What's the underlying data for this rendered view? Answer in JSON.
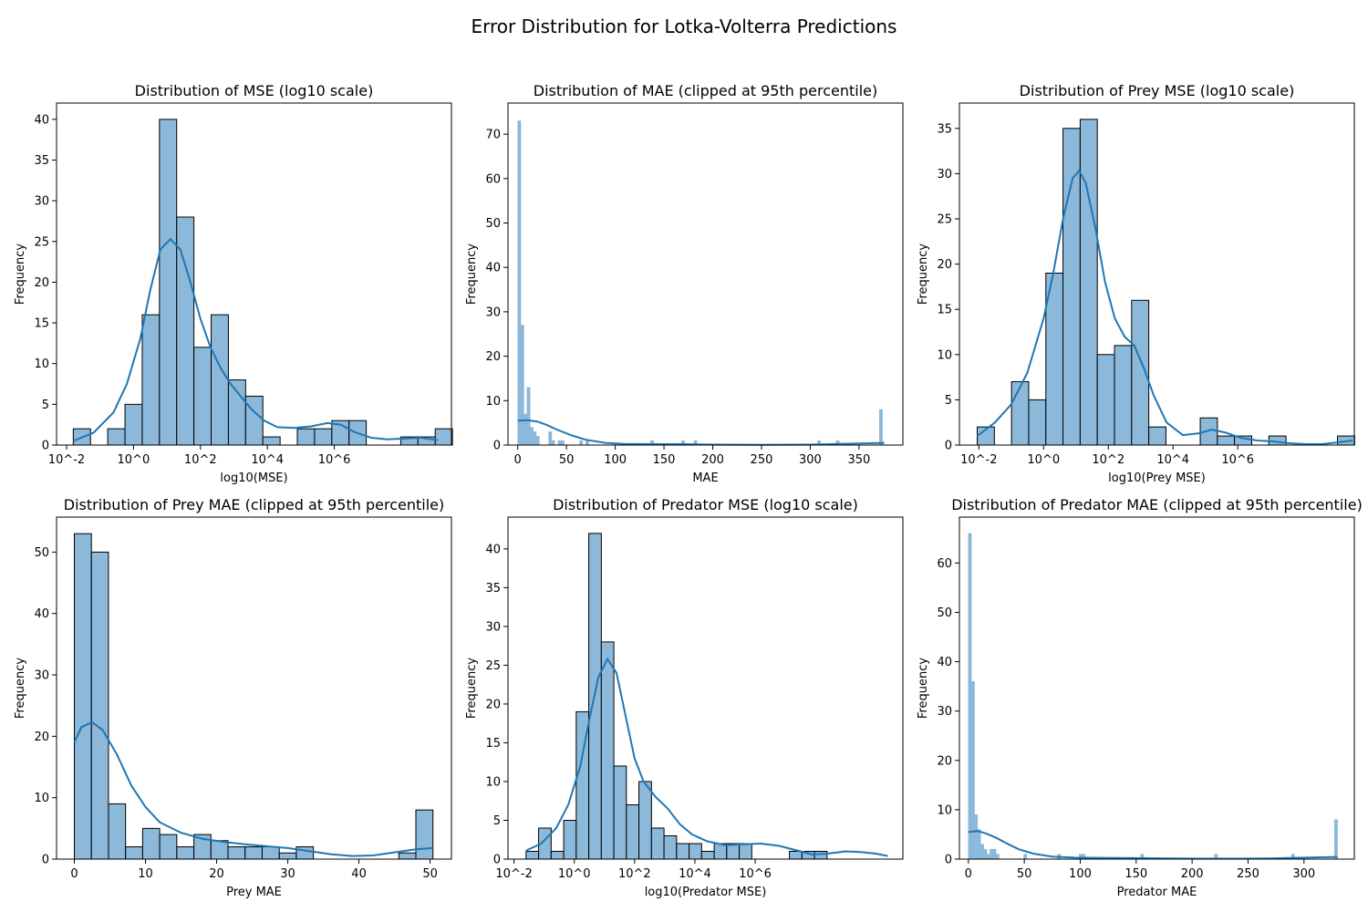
{
  "figure": {
    "title": "Error Distribution for Lotka-Volterra Predictions"
  },
  "colors": {
    "bar": "#8cb8d9",
    "kde": "#1f77b4",
    "edge": "#000000"
  },
  "chart_data": [
    {
      "type": "bar",
      "title": "Distribution of MSE (log10 scale)",
      "xlabel": "log10(MSE)",
      "ylabel": "Frequency",
      "xlim": [
        -2.3,
        9.5
      ],
      "ylim": [
        0,
        42
      ],
      "xticks": [
        {
          "v": -2,
          "label": "10^-2"
        },
        {
          "v": 0,
          "label": "10^0"
        },
        {
          "v": 2,
          "label": "10^2"
        },
        {
          "v": 4,
          "label": "10^4"
        },
        {
          "v": 6,
          "label": "10^6"
        }
      ],
      "yticks": [
        0,
        5,
        10,
        15,
        20,
        25,
        30,
        35,
        40
      ],
      "bin_start": -1.8,
      "bin_width": 0.515,
      "values": [
        2,
        0,
        2,
        5,
        16,
        40,
        28,
        12,
        16,
        8,
        6,
        1,
        0,
        2,
        2,
        3,
        3,
        0,
        0,
        1,
        1,
        2
      ],
      "kde": [
        [
          -1.8,
          0.5
        ],
        [
          -1.2,
          1.5
        ],
        [
          -0.6,
          4
        ],
        [
          -0.2,
          7.5
        ],
        [
          0.2,
          13
        ],
        [
          0.5,
          19
        ],
        [
          0.8,
          24
        ],
        [
          1.1,
          25.3
        ],
        [
          1.4,
          24
        ],
        [
          1.7,
          20
        ],
        [
          2.0,
          15.5
        ],
        [
          2.3,
          12
        ],
        [
          2.6,
          9.5
        ],
        [
          2.9,
          7.5
        ],
        [
          3.2,
          6
        ],
        [
          3.5,
          4.5
        ],
        [
          3.9,
          3
        ],
        [
          4.3,
          2.2
        ],
        [
          4.8,
          2.1
        ],
        [
          5.3,
          2.3
        ],
        [
          5.8,
          2.7
        ],
        [
          6.2,
          2.5
        ],
        [
          6.6,
          1.6
        ],
        [
          7.1,
          0.9
        ],
        [
          7.6,
          0.7
        ],
        [
          8.1,
          0.8
        ],
        [
          8.6,
          0.9
        ],
        [
          9.1,
          0.6
        ]
      ]
    },
    {
      "type": "bar",
      "title": "Distribution of MAE (clipped at 95th percentile)",
      "xlabel": "MAE",
      "ylabel": "Frequency",
      "xlim": [
        -10,
        395
      ],
      "ylim": [
        0,
        77
      ],
      "xticks": [
        {
          "v": 0,
          "label": "0"
        },
        {
          "v": 50,
          "label": "50"
        },
        {
          "v": 100,
          "label": "100"
        },
        {
          "v": 150,
          "label": "150"
        },
        {
          "v": 200,
          "label": "200"
        },
        {
          "v": 250,
          "label": "250"
        },
        {
          "v": 300,
          "label": "300"
        },
        {
          "v": 350,
          "label": "350"
        }
      ],
      "yticks": [
        0,
        10,
        20,
        30,
        40,
        50,
        60,
        70
      ],
      "bin_start": 0,
      "bin_width": 3.17,
      "values": [
        73,
        27,
        7,
        13,
        4,
        3,
        2,
        0,
        0,
        0,
        3,
        1,
        0,
        1,
        1,
        0,
        0,
        0,
        0,
        0,
        1,
        0,
        1,
        0,
        0,
        0,
        0,
        0,
        0,
        0,
        0,
        0,
        0,
        0,
        0,
        0,
        0,
        0,
        0,
        0,
        0,
        0,
        0,
        1,
        0,
        0,
        0,
        0,
        0,
        0,
        0,
        0,
        0,
        1,
        0,
        0,
        0,
        1,
        0,
        0,
        0,
        0,
        0,
        0,
        0,
        0,
        0,
        0,
        0,
        0,
        0,
        0,
        0,
        0,
        0,
        0,
        0,
        0,
        0,
        0,
        0,
        0,
        0,
        0,
        0,
        0,
        0,
        0,
        0,
        0,
        0,
        0,
        0,
        0,
        0,
        0,
        0,
        1,
        0,
        0,
        0,
        0,
        0,
        1,
        0,
        0,
        0,
        0,
        0,
        0,
        0,
        0,
        0,
        0,
        0,
        0,
        0,
        8
      ],
      "kde": [
        [
          0,
          5.5
        ],
        [
          10,
          5.6
        ],
        [
          20,
          5.3
        ],
        [
          30,
          4.5
        ],
        [
          40,
          3.5
        ],
        [
          55,
          2.2
        ],
        [
          70,
          1.2
        ],
        [
          90,
          0.5
        ],
        [
          110,
          0.25
        ],
        [
          140,
          0.2
        ],
        [
          170,
          0.2
        ],
        [
          200,
          0.1
        ],
        [
          250,
          0.05
        ],
        [
          300,
          0.1
        ],
        [
          340,
          0.3
        ],
        [
          376,
          0.5
        ]
      ]
    },
    {
      "type": "bar",
      "title": "Distribution of Prey MSE (log10 scale)",
      "xlabel": "log10(Prey MSE)",
      "ylabel": "Frequency",
      "xlim": [
        -2.6,
        9.6
      ],
      "ylim": [
        0,
        37.8
      ],
      "xticks": [
        {
          "v": -2,
          "label": "10^-2"
        },
        {
          "v": 0,
          "label": "10^0"
        },
        {
          "v": 2,
          "label": "10^2"
        },
        {
          "v": 4,
          "label": "10^4"
        },
        {
          "v": 6,
          "label": "10^6"
        }
      ],
      "yticks": [
        0,
        5,
        10,
        15,
        20,
        25,
        30,
        35
      ],
      "bin_start": -2.05,
      "bin_width": 0.53,
      "values": [
        2,
        0,
        7,
        5,
        19,
        35,
        36,
        10,
        11,
        16,
        2,
        0,
        0,
        3,
        1,
        1,
        0,
        1,
        0,
        0,
        0,
        1
      ],
      "kde": [
        [
          -2.05,
          1
        ],
        [
          -1.5,
          2.5
        ],
        [
          -1.0,
          4.5
        ],
        [
          -0.5,
          8
        ],
        [
          0,
          14
        ],
        [
          0.3,
          19
        ],
        [
          0.6,
          25
        ],
        [
          0.9,
          29.5
        ],
        [
          1.1,
          30.3
        ],
        [
          1.3,
          29
        ],
        [
          1.6,
          24
        ],
        [
          1.9,
          18
        ],
        [
          2.2,
          14
        ],
        [
          2.5,
          12
        ],
        [
          2.8,
          11
        ],
        [
          3.1,
          8.5
        ],
        [
          3.4,
          5.5
        ],
        [
          3.8,
          2.5
        ],
        [
          4.3,
          1.1
        ],
        [
          4.8,
          1.3
        ],
        [
          5.2,
          1.7
        ],
        [
          5.6,
          1.4
        ],
        [
          6.1,
          0.8
        ],
        [
          6.6,
          0.5
        ],
        [
          7.1,
          0.4
        ],
        [
          7.6,
          0.2
        ],
        [
          8.1,
          0.1
        ],
        [
          8.6,
          0.1
        ],
        [
          9.1,
          0.3
        ],
        [
          9.55,
          0.5
        ]
      ]
    },
    {
      "type": "bar",
      "title": "Distribution of Prey MAE (clipped at 95th percentile)",
      "xlabel": "Prey MAE",
      "ylabel": "Frequency",
      "xlim": [
        -2.5,
        53
      ],
      "ylim": [
        0,
        55.7
      ],
      "xticks": [
        {
          "v": 0,
          "label": "0"
        },
        {
          "v": 10,
          "label": "10"
        },
        {
          "v": 20,
          "label": "20"
        },
        {
          "v": 30,
          "label": "30"
        },
        {
          "v": 40,
          "label": "40"
        },
        {
          "v": 50,
          "label": "50"
        }
      ],
      "yticks": [
        0,
        10,
        20,
        30,
        40,
        50
      ],
      "bin_start": 0,
      "bin_width": 2.4,
      "values": [
        53,
        50,
        9,
        2,
        5,
        4,
        2,
        4,
        3,
        2,
        2,
        2,
        1,
        2,
        0,
        0,
        0,
        0,
        0,
        1,
        8
      ],
      "kde": [
        [
          0,
          19
        ],
        [
          1,
          21.5
        ],
        [
          2.5,
          22.3
        ],
        [
          4,
          21
        ],
        [
          6,
          17
        ],
        [
          8,
          12
        ],
        [
          10,
          8.5
        ],
        [
          12,
          6
        ],
        [
          15,
          4.3
        ],
        [
          18,
          3.3
        ],
        [
          21,
          2.8
        ],
        [
          24,
          2.4
        ],
        [
          27,
          2.1
        ],
        [
          30,
          1.8
        ],
        [
          33,
          1.3
        ],
        [
          36,
          0.8
        ],
        [
          39,
          0.5
        ],
        [
          42,
          0.6
        ],
        [
          45,
          1.1
        ],
        [
          48,
          1.6
        ],
        [
          50.5,
          1.8
        ]
      ]
    },
    {
      "type": "bar",
      "title": "Distribution of Predator MSE (log10 scale)",
      "xlabel": "log10(Predator MSE)",
      "ylabel": "Frequency",
      "xlim": [
        -2.2,
        10.9
      ],
      "ylim": [
        0,
        44.1
      ],
      "xticks": [
        {
          "v": -2,
          "label": "10^-2"
        },
        {
          "v": 0,
          "label": "10^0"
        },
        {
          "v": 2,
          "label": "10^2"
        },
        {
          "v": 4,
          "label": "10^4"
        },
        {
          "v": 6,
          "label": "10^6"
        }
      ],
      "yticks": [
        0,
        5,
        10,
        15,
        20,
        25,
        30,
        35,
        40
      ],
      "bin_start": -1.6,
      "bin_width": 0.416,
      "values": [
        1,
        4,
        1,
        5,
        19,
        42,
        28,
        12,
        7,
        10,
        4,
        3,
        2,
        2,
        1,
        2,
        2,
        2,
        0,
        0,
        0,
        1,
        1,
        1
      ],
      "kde": [
        [
          -1.6,
          1.1
        ],
        [
          -1.1,
          2
        ],
        [
          -0.6,
          4
        ],
        [
          -0.2,
          7
        ],
        [
          0.2,
          12
        ],
        [
          0.5,
          18
        ],
        [
          0.8,
          23.5
        ],
        [
          1.1,
          25.8
        ],
        [
          1.4,
          24
        ],
        [
          1.7,
          18.5
        ],
        [
          2.0,
          13
        ],
        [
          2.3,
          10
        ],
        [
          2.7,
          8
        ],
        [
          3.1,
          6.5
        ],
        [
          3.5,
          4.5
        ],
        [
          3.9,
          3.2
        ],
        [
          4.4,
          2.3
        ],
        [
          5.0,
          1.8
        ],
        [
          5.6,
          1.9
        ],
        [
          6.2,
          2
        ],
        [
          6.8,
          1.7
        ],
        [
          7.4,
          1.1
        ],
        [
          7.9,
          0.6
        ],
        [
          8.4,
          0.7
        ],
        [
          9.0,
          1
        ],
        [
          9.5,
          0.9
        ],
        [
          10.0,
          0.7
        ],
        [
          10.4,
          0.4
        ]
      ]
    },
    {
      "type": "bar",
      "title": "Distribution of Predator MAE (clipped at 95th percentile)",
      "xlabel": "Predator MAE",
      "ylabel": "Frequency",
      "xlim": [
        -8,
        345
      ],
      "ylim": [
        0,
        69.3
      ],
      "xticks": [
        {
          "v": 0,
          "label": "0"
        },
        {
          "v": 50,
          "label": "50"
        },
        {
          "v": 100,
          "label": "100"
        },
        {
          "v": 150,
          "label": "150"
        },
        {
          "v": 200,
          "label": "200"
        },
        {
          "v": 250,
          "label": "250"
        },
        {
          "v": 300,
          "label": "300"
        }
      ],
      "yticks": [
        0,
        10,
        20,
        30,
        40,
        50,
        60
      ],
      "bin_start": 0,
      "bin_width": 2.75,
      "values": [
        66,
        36,
        9,
        6,
        3,
        2,
        1,
        2,
        2,
        1,
        0,
        0,
        0,
        0,
        0,
        0,
        0,
        0,
        1,
        0,
        0,
        0,
        0,
        0,
        0,
        0,
        0,
        0,
        0,
        1,
        0,
        0,
        0,
        0,
        0,
        0,
        1,
        1,
        0,
        0,
        0,
        0,
        0,
        0,
        0,
        0,
        0,
        0,
        0,
        0,
        0,
        0,
        0,
        0,
        0,
        0,
        1,
        0,
        0,
        0,
        0,
        0,
        0,
        0,
        0,
        0,
        0,
        0,
        0,
        0,
        0,
        0,
        0,
        0,
        0,
        0,
        0,
        0,
        0,
        0,
        1,
        0,
        0,
        0,
        0,
        0,
        0,
        0,
        0,
        0,
        0,
        0,
        0,
        0,
        0,
        0,
        0,
        0,
        0,
        0,
        0,
        0,
        0,
        0,
        0,
        1,
        0,
        0,
        0,
        0,
        0,
        0,
        0,
        0,
        0,
        0,
        0,
        0,
        0,
        8
      ],
      "kde": [
        [
          0,
          5.5
        ],
        [
          8,
          5.7
        ],
        [
          16,
          5.2
        ],
        [
          25,
          4.3
        ],
        [
          35,
          3.1
        ],
        [
          45,
          2
        ],
        [
          58,
          1.1
        ],
        [
          75,
          0.5
        ],
        [
          95,
          0.3
        ],
        [
          120,
          0.25
        ],
        [
          150,
          0.2
        ],
        [
          180,
          0.15
        ],
        [
          210,
          0.1
        ],
        [
          240,
          0.1
        ],
        [
          270,
          0.15
        ],
        [
          300,
          0.3
        ],
        [
          330,
          0.45
        ]
      ]
    }
  ]
}
